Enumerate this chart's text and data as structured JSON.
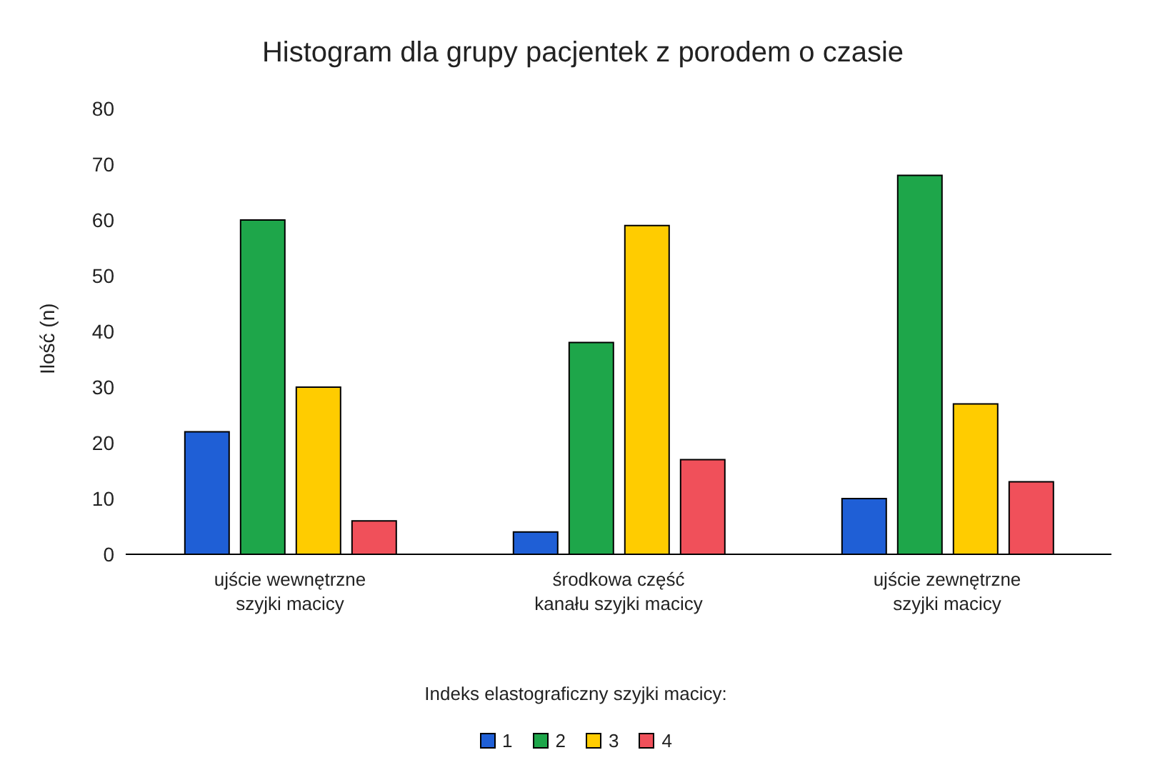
{
  "chart_data": {
    "type": "bar",
    "title": "Histogram dla grupy pacjentek z porodem o czasie",
    "ylabel": "Ilość (n)",
    "legend_title": "Indeks elastograficzny szyjki macicy:",
    "categories": [
      "ujście wewnętrzne szyjki macicy",
      "środkowa część kanału szyjki macicy",
      "ujście zewnętrzne szyjki macicy"
    ],
    "series": [
      {
        "name": "1",
        "color": "#1f5fd6",
        "values": [
          22,
          4,
          10
        ]
      },
      {
        "name": "2",
        "color": "#1ea64a",
        "values": [
          60,
          38,
          68
        ]
      },
      {
        "name": "3",
        "color": "#ffcc00",
        "values": [
          30,
          59,
          27
        ]
      },
      {
        "name": "4",
        "color": "#f0505a",
        "values": [
          6,
          17,
          13
        ]
      }
    ],
    "ylim": [
      0,
      80
    ],
    "yticks": [
      0,
      10,
      20,
      30,
      40,
      50,
      60,
      70,
      80
    ],
    "grid": false,
    "legend": "bottom"
  }
}
